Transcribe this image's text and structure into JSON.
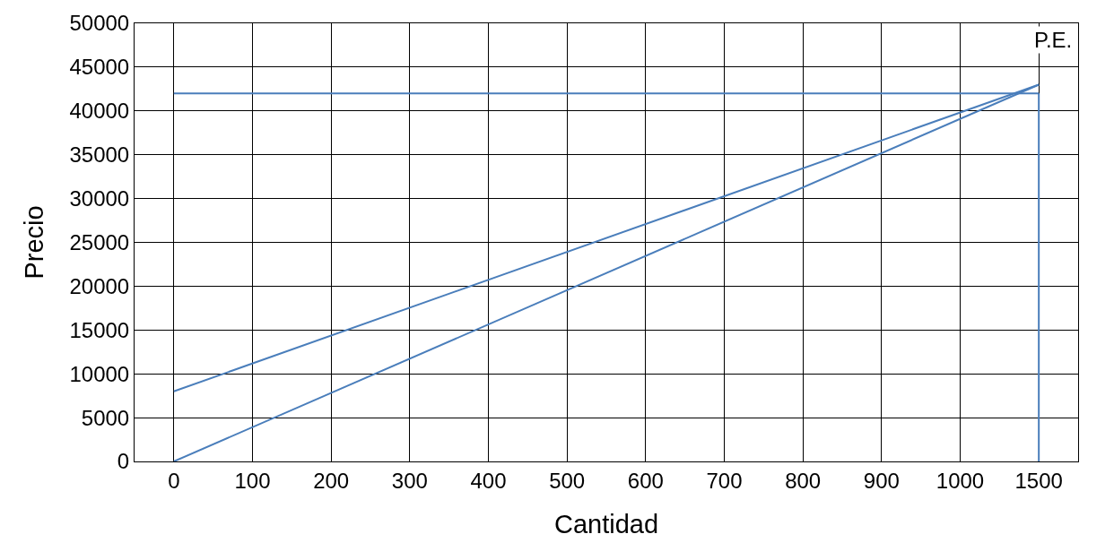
{
  "chart_data": {
    "type": "line",
    "xlabel": "Cantidad",
    "ylabel": "Precio",
    "categories": [
      "0",
      "100",
      "200",
      "300",
      "400",
      "500",
      "600",
      "700",
      "800",
      "900",
      "1000",
      "1500"
    ],
    "series": [
      {
        "color": "#4a7ebb",
        "values": [
          8000,
          null,
          null,
          null,
          null,
          null,
          null,
          null,
          null,
          null,
          null,
          43000
        ]
      },
      {
        "color": "#4a7ebb",
        "values": [
          0,
          null,
          null,
          null,
          null,
          null,
          null,
          null,
          null,
          null,
          null,
          43000
        ]
      }
    ],
    "ylim": [
      0,
      50000
    ],
    "yticks": [
      0,
      5000,
      10000,
      15000,
      20000,
      25000,
      30000,
      35000,
      40000,
      45000,
      50000
    ],
    "ref_lines": [
      {
        "axis": "y",
        "value": 42000,
        "color": "#4a7ebb"
      },
      {
        "axis": "x",
        "value": "1500",
        "color": "#4a7ebb"
      }
    ],
    "annotations": [
      "P.E."
    ],
    "grid": true,
    "marker": "none",
    "line_style": "solid"
  }
}
